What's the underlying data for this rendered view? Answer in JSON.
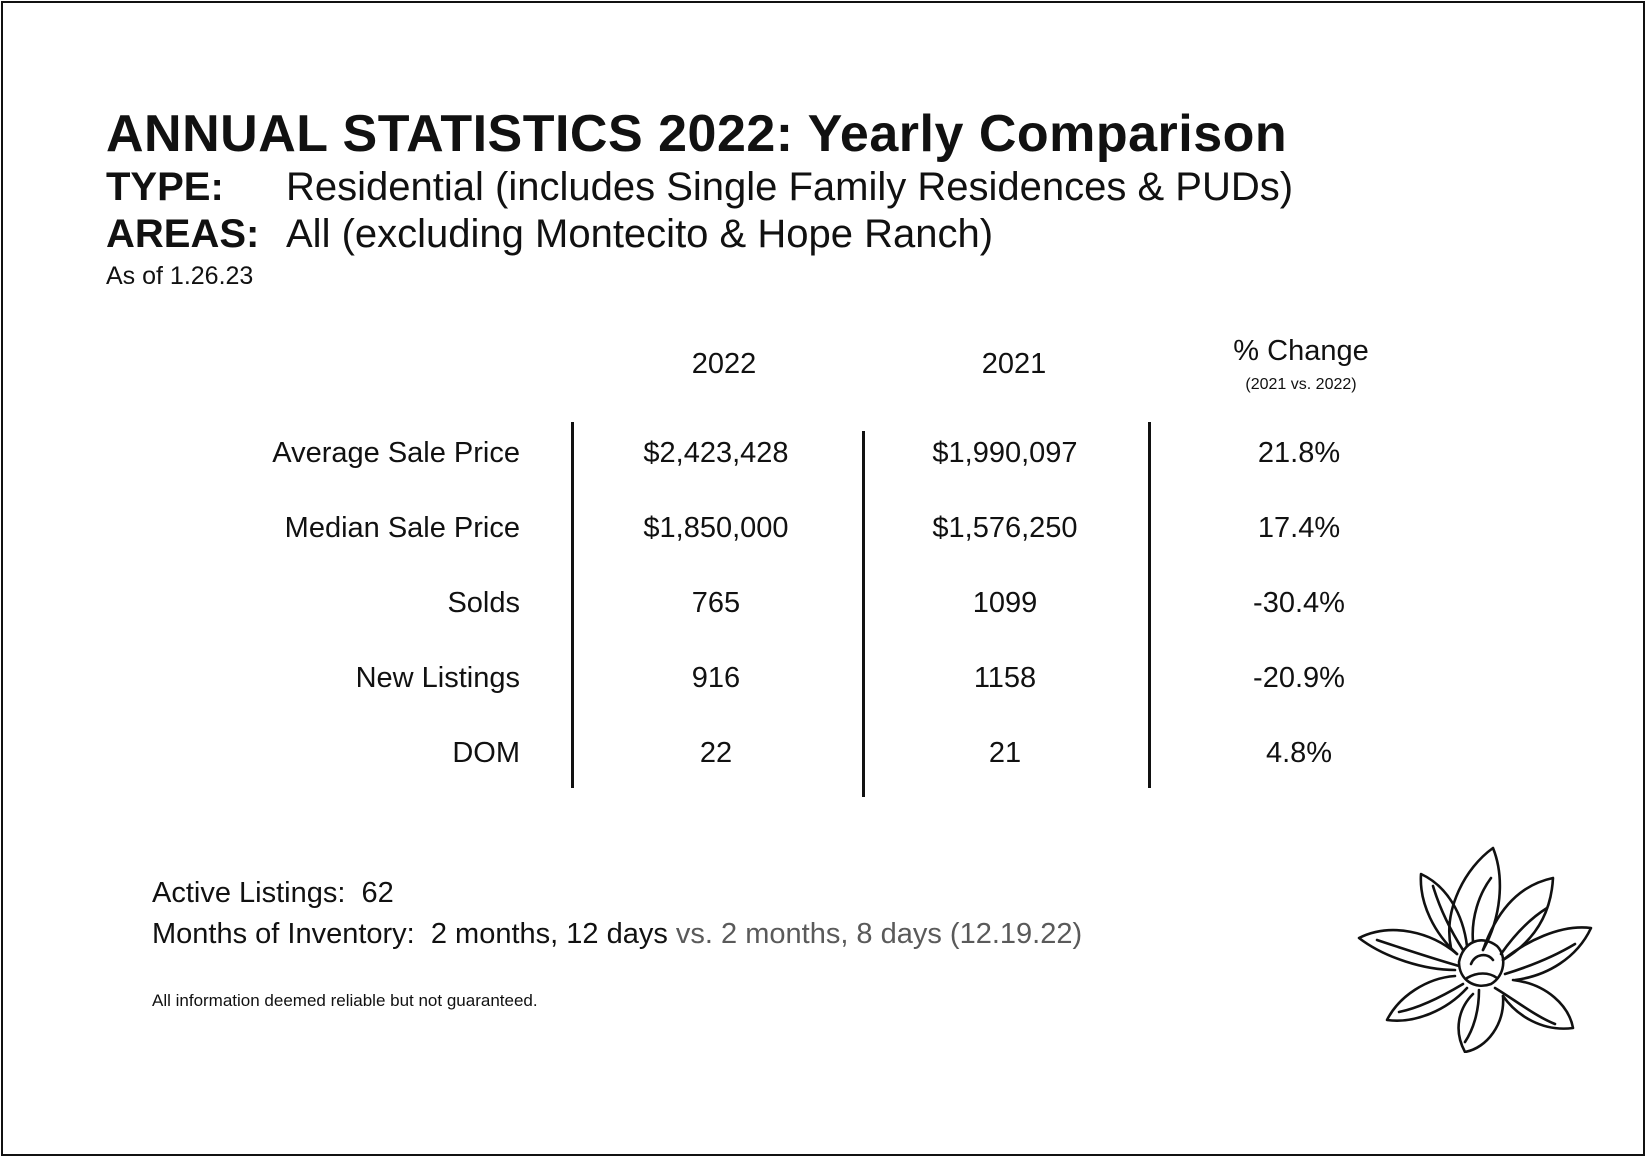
{
  "title": "ANNUAL STATISTICS 2022: Yearly Comparison",
  "type_label": "TYPE:",
  "type_value": "Residential (includes Single Family Residences & PUDs)",
  "areas_label": "AREAS:",
  "areas_value": "All (excluding Montecito & Hope Ranch)",
  "as_of": "As of 1.26.23",
  "table": {
    "columns": [
      "2022",
      "2021",
      "% Change"
    ],
    "change_subtitle": "(2021 vs. 2022)",
    "rows": [
      {
        "label": "Average Sale Price",
        "y2022": "$2,423,428",
        "y2021": "$1,990,097",
        "change": "21.8%"
      },
      {
        "label": "Median Sale Price",
        "y2022": "$1,850,000",
        "y2021": "$1,576,250",
        "change": "17.4%"
      },
      {
        "label": "Solds",
        "y2022": "765",
        "y2021": "1099",
        "change": "-30.4%"
      },
      {
        "label": "New Listings",
        "y2022": "916",
        "y2021": "1158",
        "change": "-20.9%"
      },
      {
        "label": "DOM",
        "y2022": "22",
        "y2021": "21",
        "change": "4.8%"
      }
    ]
  },
  "active_listings": {
    "label": "Active Listings:",
    "value": "62"
  },
  "months_of_inventory": {
    "label": "Months of Inventory:",
    "value": "2 months, 12 days",
    "comparison": "vs. 2 months, 8 days (12.19.22)"
  },
  "disclaimer": "All information deemed reliable but not guaranteed.",
  "colors": {
    "text": "#111111",
    "muted": "#5a5a5a",
    "background": "#ffffff"
  },
  "decoration": "lotus-flower-line-art"
}
